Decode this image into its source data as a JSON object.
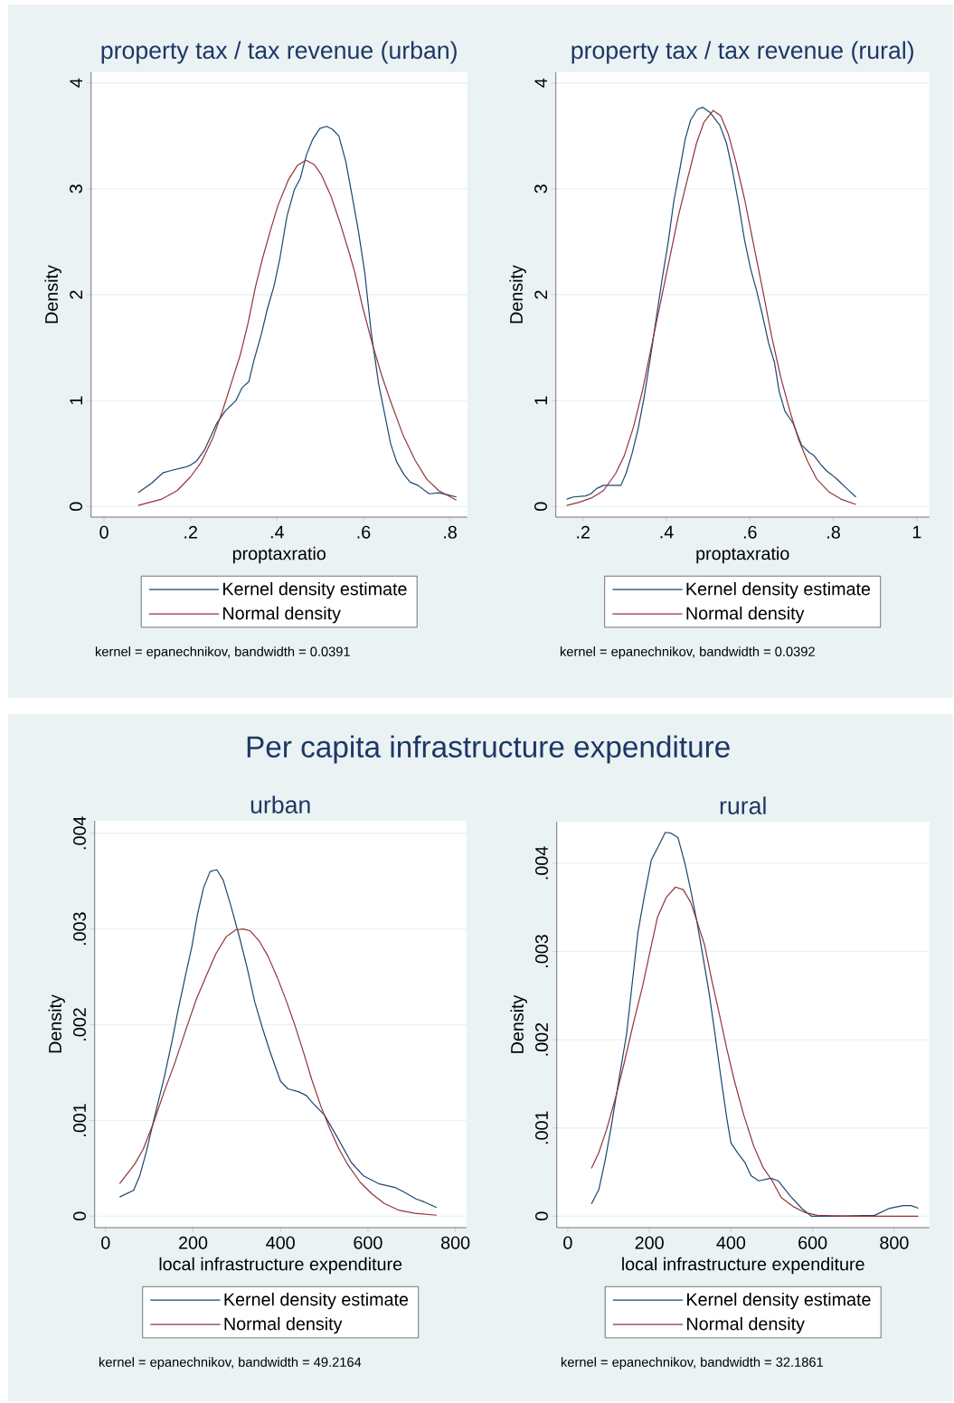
{
  "chart_data": [
    {
      "type": "line",
      "title": "property tax / tax revenue (urban)",
      "xlabel": "proptaxratio",
      "ylabel": "Density",
      "xlim": [
        -0.03,
        0.84
      ],
      "ylim": [
        -0.1,
        4.1
      ],
      "xticks": [
        0,
        {
          "value": 0.2,
          "label": ".2"
        },
        {
          "value": 0.4,
          "label": ".4"
        },
        {
          "value": 0.6,
          "label": ".6"
        },
        {
          "value": 0.8,
          "label": ".8"
        }
      ],
      "yticks": [
        0,
        1,
        2,
        3,
        4
      ],
      "grid": "y",
      "legend": "bottom",
      "annotations": [
        "kernel = epanechnikov, bandwidth = 0.0391"
      ],
      "series": [
        {
          "name": "Kernel density estimate",
          "color": "#1a476f",
          "x": [
            0.079,
            0.11,
            0.137,
            0.155,
            0.186,
            0.2,
            0.214,
            0.232,
            0.26,
            0.28,
            0.305,
            0.319,
            0.335,
            0.346,
            0.364,
            0.378,
            0.393,
            0.407,
            0.423,
            0.44,
            0.454,
            0.468,
            0.483,
            0.499,
            0.515,
            0.529,
            0.543,
            0.559,
            0.573,
            0.588,
            0.603,
            0.618,
            0.635,
            0.663,
            0.677,
            0.694,
            0.708,
            0.726,
            0.752,
            0.774,
            0.795,
            0.815
          ],
          "values": [
            0.13,
            0.22,
            0.32,
            0.34,
            0.37,
            0.39,
            0.43,
            0.53,
            0.78,
            0.9,
            1.0,
            1.12,
            1.18,
            1.37,
            1.63,
            1.87,
            2.08,
            2.35,
            2.74,
            2.99,
            3.1,
            3.32,
            3.47,
            3.57,
            3.59,
            3.56,
            3.5,
            3.26,
            2.95,
            2.61,
            2.21,
            1.64,
            1.16,
            0.59,
            0.42,
            0.3,
            0.23,
            0.2,
            0.12,
            0.13,
            0.11,
            0.09
          ]
        },
        {
          "name": "Normal density",
          "color": "#90353b",
          "x": [
            0.079,
            0.106,
            0.134,
            0.169,
            0.2,
            0.225,
            0.252,
            0.273,
            0.294,
            0.315,
            0.333,
            0.35,
            0.367,
            0.385,
            0.402,
            0.427,
            0.447,
            0.467,
            0.486,
            0.503,
            0.524,
            0.545,
            0.566,
            0.58,
            0.597,
            0.621,
            0.642,
            0.663,
            0.691,
            0.719,
            0.746,
            0.774,
            0.815
          ],
          "values": [
            0.01,
            0.04,
            0.07,
            0.15,
            0.28,
            0.42,
            0.65,
            0.89,
            1.16,
            1.43,
            1.73,
            2.07,
            2.35,
            2.61,
            2.84,
            3.09,
            3.22,
            3.27,
            3.23,
            3.13,
            2.94,
            2.69,
            2.41,
            2.21,
            1.9,
            1.53,
            1.24,
            0.99,
            0.68,
            0.44,
            0.26,
            0.15,
            0.06
          ]
        }
      ]
    },
    {
      "type": "line",
      "title": "property tax / tax revenue (rural)",
      "xlabel": "proptaxratio",
      "ylabel": "Density",
      "xlim": [
        0.135,
        1.03
      ],
      "ylim": [
        -0.1,
        4.1
      ],
      "xticks": [
        {
          "value": 0.2,
          "label": ".2"
        },
        {
          "value": 0.4,
          "label": ".4"
        },
        {
          "value": 0.6,
          "label": ".6"
        },
        {
          "value": 0.8,
          "label": ".8"
        },
        1
      ],
      "yticks": [
        0,
        1,
        2,
        3,
        4
      ],
      "grid": "y",
      "legend": "bottom",
      "annotations": [
        "kernel = epanechnikov, bandwidth = 0.0392"
      ],
      "series": [
        {
          "name": "Kernel density estimate",
          "color": "#1a476f",
          "x": [
            0.161,
            0.177,
            0.206,
            0.219,
            0.233,
            0.249,
            0.291,
            0.303,
            0.317,
            0.332,
            0.346,
            0.361,
            0.375,
            0.389,
            0.404,
            0.418,
            0.431,
            0.445,
            0.458,
            0.474,
            0.487,
            0.505,
            0.528,
            0.544,
            0.558,
            0.573,
            0.587,
            0.602,
            0.616,
            0.63,
            0.645,
            0.659,
            0.67,
            0.684,
            0.703,
            0.724,
            0.742,
            0.754,
            0.769,
            0.783,
            0.796,
            0.811,
            0.832,
            0.854
          ],
          "values": [
            0.07,
            0.09,
            0.1,
            0.12,
            0.17,
            0.2,
            0.2,
            0.31,
            0.49,
            0.73,
            1.02,
            1.39,
            1.76,
            2.13,
            2.49,
            2.89,
            3.16,
            3.47,
            3.65,
            3.75,
            3.77,
            3.72,
            3.6,
            3.43,
            3.18,
            2.86,
            2.52,
            2.24,
            2.04,
            1.81,
            1.54,
            1.36,
            1.09,
            0.9,
            0.79,
            0.58,
            0.51,
            0.48,
            0.4,
            0.34,
            0.3,
            0.25,
            0.17,
            0.09
          ]
        },
        {
          "name": "Normal density",
          "color": "#90353b",
          "x": [
            0.161,
            0.191,
            0.22,
            0.249,
            0.278,
            0.299,
            0.321,
            0.343,
            0.364,
            0.386,
            0.408,
            0.429,
            0.451,
            0.472,
            0.49,
            0.512,
            0.53,
            0.548,
            0.566,
            0.588,
            0.609,
            0.631,
            0.652,
            0.674,
            0.696,
            0.717,
            0.739,
            0.76,
            0.789,
            0.818,
            0.854
          ],
          "values": [
            0.01,
            0.04,
            0.08,
            0.15,
            0.31,
            0.48,
            0.75,
            1.1,
            1.51,
            1.93,
            2.35,
            2.75,
            3.1,
            3.43,
            3.63,
            3.74,
            3.69,
            3.52,
            3.26,
            2.89,
            2.47,
            2.04,
            1.61,
            1.22,
            0.9,
            0.63,
            0.42,
            0.26,
            0.14,
            0.07,
            0.02
          ]
        }
      ]
    },
    {
      "type": "line",
      "title": "Per capita infrastructure expenditure",
      "subtitle": "urban",
      "xlabel": "local infrastructure expenditure",
      "ylabel": "Density",
      "xlim": [
        -25,
        825
      ],
      "ylim": [
        -0.00012,
        0.00413
      ],
      "xticks": [
        0,
        200,
        400,
        600,
        800
      ],
      "yticks": [
        0,
        {
          "value": 0.001,
          "label": ".001"
        },
        {
          "value": 0.002,
          "label": ".002"
        },
        {
          "value": 0.003,
          "label": ".003"
        },
        {
          "value": 0.004,
          "label": ".004"
        }
      ],
      "grid": "y",
      "legend": "bottom",
      "annotations": [
        "kernel = epanechnikov, bandwidth = 49.2164"
      ],
      "series": [
        {
          "name": "Kernel density estimate",
          "color": "#1a476f",
          "x": [
            32,
            64,
            78,
            93,
            110,
            134,
            152,
            166,
            183,
            197,
            210,
            224,
            239,
            254,
            269,
            286,
            307,
            324,
            341,
            359,
            376,
            400,
            417,
            441,
            459,
            476,
            500,
            528,
            562,
            590,
            624,
            662,
            683,
            710,
            728,
            757
          ],
          "values": [
            0.0002,
            0.00027,
            0.00042,
            0.00067,
            0.001,
            0.00145,
            0.00183,
            0.00216,
            0.00252,
            0.00281,
            0.00315,
            0.00343,
            0.0036,
            0.00362,
            0.00351,
            0.00325,
            0.0029,
            0.00259,
            0.00224,
            0.00196,
            0.00172,
            0.00141,
            0.00133,
            0.0013,
            0.00126,
            0.00117,
            0.00106,
            0.00084,
            0.00056,
            0.00042,
            0.00034,
            0.0003,
            0.00025,
            0.00018,
            0.00015,
            9e-05
          ]
        },
        {
          "name": "Normal density",
          "color": "#90353b",
          "x": [
            32,
            66,
            86,
            110,
            134,
            159,
            183,
            207,
            231,
            252,
            276,
            297,
            314,
            331,
            352,
            372,
            393,
            414,
            431,
            452,
            472,
            493,
            514,
            534,
            555,
            583,
            610,
            638,
            672,
            707,
            757
          ],
          "values": [
            0.00034,
            0.00054,
            0.0007,
            0.00098,
            0.0013,
            0.00161,
            0.00194,
            0.00226,
            0.00252,
            0.00274,
            0.00292,
            0.00299,
            0.003,
            0.00298,
            0.00287,
            0.00271,
            0.00249,
            0.00224,
            0.00202,
            0.00172,
            0.00142,
            0.00114,
            0.0009,
            0.0007,
            0.00053,
            0.00035,
            0.00023,
            0.00013,
            6e-05,
            3e-05,
            1e-05
          ]
        }
      ]
    },
    {
      "type": "line",
      "subtitle": "rural",
      "xlabel": "local infrastructure expenditure",
      "ylabel": "Density",
      "xlim": [
        -27,
        886
      ],
      "ylim": [
        -0.00013,
        0.00447
      ],
      "xticks": [
        0,
        200,
        400,
        600,
        800
      ],
      "yticks": [
        0,
        {
          "value": 0.001,
          "label": ".001"
        },
        {
          "value": 0.002,
          "label": ".002"
        },
        {
          "value": 0.003,
          "label": ".003"
        },
        {
          "value": 0.004,
          "label": ".004"
        }
      ],
      "grid": "y",
      "legend": "bottom",
      "annotations": [
        "kernel = epanechnikov, bandwidth = 32.1861"
      ],
      "series": [
        {
          "name": "Kernel density estimate",
          "color": "#1a476f",
          "x": [
            58,
            76,
            91,
            106,
            124,
            144,
            157,
            172,
            189,
            205,
            222,
            239,
            253,
            270,
            287,
            301,
            316,
            331,
            346,
            360,
            375,
            390,
            400,
            416,
            434,
            449,
            468,
            497,
            516,
            545,
            575,
            597,
            649,
            752,
            789,
            822,
            841,
            859
          ],
          "values": [
            0.00014,
            0.0003,
            0.00062,
            0.001,
            0.00151,
            0.00206,
            0.0026,
            0.00322,
            0.00366,
            0.00404,
            0.00419,
            0.00435,
            0.00434,
            0.00429,
            0.004,
            0.0037,
            0.00335,
            0.00295,
            0.00254,
            0.00209,
            0.00158,
            0.0011,
            0.00083,
            0.00072,
            0.00061,
            0.00046,
            0.0004,
            0.00043,
            0.0004,
            0.00023,
            8e-05,
            0,
            0,
            1e-05,
            9e-05,
            0.00012,
            0.00012,
            9e-05
          ]
        },
        {
          "name": "Normal density",
          "color": "#90353b",
          "x": [
            58,
            76,
            95,
            117,
            139,
            161,
            183,
            202,
            220,
            241,
            264,
            283,
            301,
            316,
            335,
            353,
            371,
            390,
            408,
            431,
            456,
            479,
            501,
            523,
            552,
            582,
            612,
            685,
            859
          ],
          "values": [
            0.00054,
            0.00072,
            0.00098,
            0.00134,
            0.00175,
            0.00219,
            0.0026,
            0.00301,
            0.00339,
            0.00361,
            0.00373,
            0.0037,
            0.00356,
            0.00335,
            0.00308,
            0.00267,
            0.0023,
            0.00189,
            0.00154,
            0.00115,
            0.00079,
            0.00055,
            0.0004,
            0.00021,
            0.00011,
            4e-05,
            1e-05,
            0,
            0
          ]
        }
      ]
    }
  ]
}
